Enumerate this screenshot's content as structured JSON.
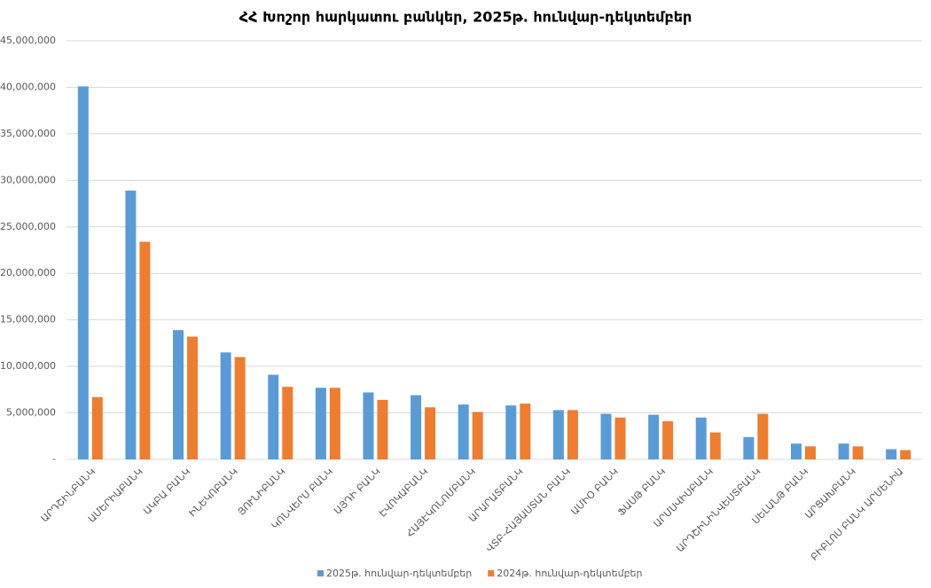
{
  "chart_data": {
    "type": "bar",
    "title": "ՀՀ Խոշոր հարկատու բանկեր, 2025թ. հունվար-դեկտեմբեր",
    "categories": [
      "ԱՐԴՇԻՆԲԱՆԿ",
      "ԱՄԵՐԻԱԲԱՆԿ",
      "ԱԿԲԱ ԲԱՆԿ",
      "ԻՆԵԿՈԲԱՆԿ",
      "ՅՈՒՆԻԲԱՆԿ",
      "ԿՈՆՎԵՐՍ ԲԱՆԿ",
      "ԱՅԴԻ ԲԱՆԿ",
      "ԷՎՈԿԱԲԱՆԿ",
      "ՀԱՅԷԿՈՆՈՄԲԱՆԿ",
      "ԱՐԱՐԱՏԲԱՆԿ",
      "ՎՏԲ-ՀԱՅԱՍՏԱՆ ԲԱՆԿ",
      "ԱՄԻՕ ԲԱՆԿ",
      "ՖԱՍԹ ԲԱՆԿ",
      "ԱՐՄՍՎԻՍԲԱՆԿ",
      "ԱՐԴՇԻՆԻՆՎԵՍՏԲԱՆԿ",
      "ՍԵԼԱՆԹ ԲԱՆԿ",
      "ԱՐՑԱԽԲԱՆԿ",
      "ԲԻԲԼՈՍ ԲԱՆԿ ԱՐՄԵՆԻԱ"
    ],
    "series": [
      {
        "name": "2025թ. հունվար-դեկտեմբեր",
        "color": "#5b9bd5",
        "values": [
          40100000,
          28900000,
          13900000,
          11500000,
          9100000,
          7700000,
          7200000,
          6900000,
          5900000,
          5800000,
          5300000,
          4900000,
          4800000,
          4500000,
          2400000,
          1700000,
          1700000,
          1100000
        ]
      },
      {
        "name": "2024թ. հունվար-դեկտեմբեր",
        "color": "#ed7d31",
        "values": [
          6700000,
          23400000,
          13200000,
          11000000,
          7800000,
          7700000,
          6400000,
          5600000,
          5100000,
          6000000,
          5300000,
          4500000,
          4100000,
          2900000,
          4900000,
          1400000,
          1400000,
          1000000
        ]
      }
    ],
    "ylim": [
      0,
      45000000
    ],
    "yticks": [
      {
        "value": 0,
        "label": "-"
      },
      {
        "value": 5000000,
        "label": "5,000,000"
      },
      {
        "value": 10000000,
        "label": "10,000,000"
      },
      {
        "value": 15000000,
        "label": "15,000,000"
      },
      {
        "value": 20000000,
        "label": "20,000,000"
      },
      {
        "value": 25000000,
        "label": "25,000,000"
      },
      {
        "value": 30000000,
        "label": "30,000,000"
      },
      {
        "value": 35000000,
        "label": "35,000,000"
      },
      {
        "value": 40000000,
        "label": "40,000,000"
      },
      {
        "value": 45000000,
        "label": "45,000,000"
      }
    ],
    "grid": true,
    "legend": "bottom"
  }
}
